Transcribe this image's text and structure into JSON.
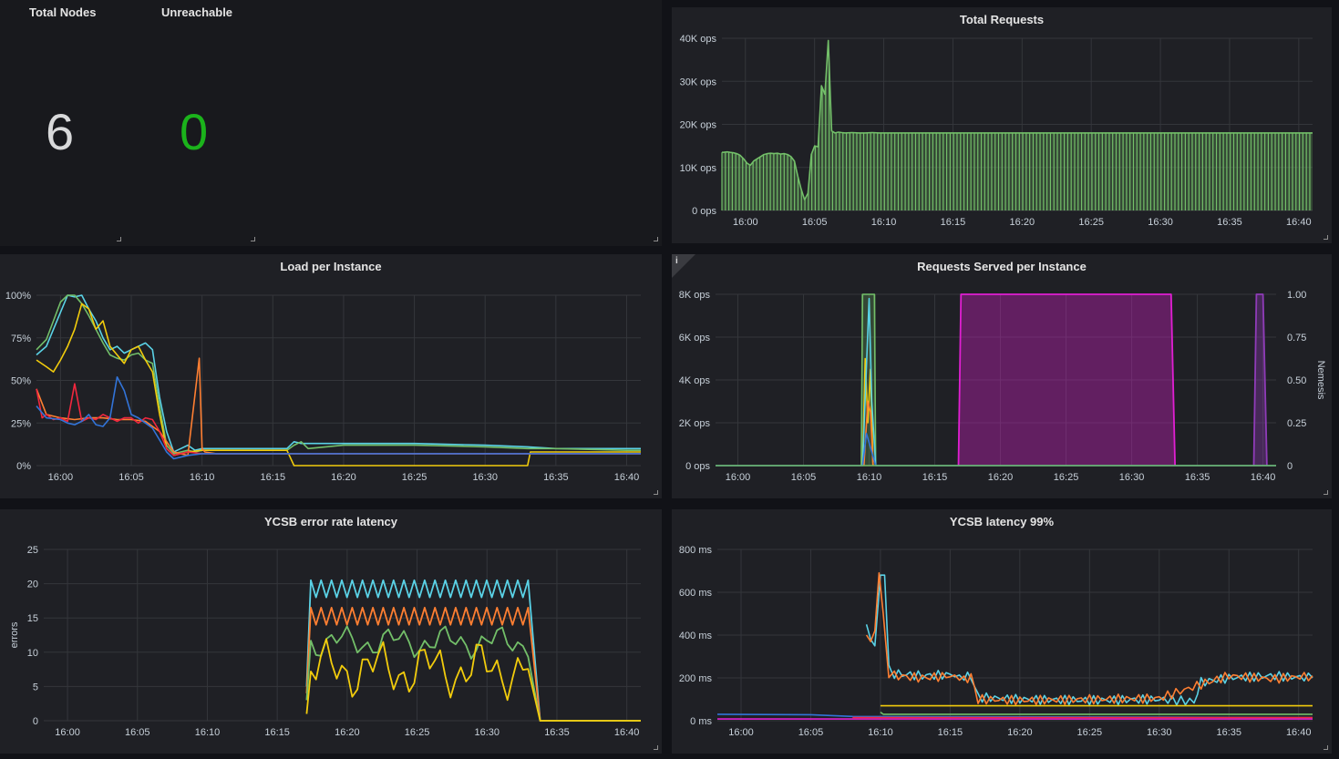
{
  "stats": {
    "total_nodes": {
      "title": "Total Nodes",
      "value": "6",
      "color": "#d8d9da"
    },
    "unreachable": {
      "title": "Unreachable",
      "value": "0",
      "color": "#1bb31b"
    }
  },
  "panels": {
    "total_requests": {
      "title": "Total Requests"
    },
    "load": {
      "title": "Load per Instance"
    },
    "requests_served": {
      "title": "Requests Served per Instance",
      "info_icon": "info-icon"
    },
    "ycsb_errors": {
      "title": "YCSB error rate latency"
    },
    "ycsb_latency": {
      "title": "YCSB latency 99%"
    }
  },
  "colors": {
    "grid": "#34363b",
    "green": "#73bf69",
    "cyan": "#5ad2e6",
    "yellow": "#f2cc0c",
    "orange": "#ff7f32",
    "red": "#f2273e",
    "blue": "#3274d9",
    "lightgreen": "#96d98d",
    "magenta": "#e01fd2",
    "purple": "#8f3bb8",
    "panel_bg": "#1f2025"
  },
  "chart_data": [
    {
      "id": "total_requests",
      "type": "bar",
      "title": "Total Requests",
      "x_ticks": [
        "16:00",
        "16:05",
        "16:10",
        "16:15",
        "16:20",
        "16:25",
        "16:30",
        "16:35",
        "16:40"
      ],
      "y_ticks": [
        "0 ops",
        "10K ops",
        "20K ops",
        "30K ops",
        "40K ops"
      ],
      "ylim": [
        0,
        40000
      ],
      "x_range": [
        "15:58",
        "16:41"
      ],
      "grid": true,
      "series": [
        {
          "color": "#73bf69",
          "x": [
            15.8,
            16,
            16.6,
            17,
            17.5,
            18,
            18.5,
            19,
            19.5,
            20,
            20.5,
            21,
            21.5,
            22,
            22.5,
            23,
            23.5,
            24,
            24.5,
            25,
            25.5,
            26,
            26.5,
            27,
            27.5,
            28,
            28.5,
            29,
            29.5,
            30,
            30.5,
            31,
            31.5,
            32,
            32.5,
            33,
            33.5,
            34,
            35,
            36,
            37,
            38,
            39,
            40,
            41,
            42,
            43,
            44,
            45,
            46,
            47,
            48,
            49,
            50,
            51,
            52,
            53,
            54,
            55,
            56,
            57,
            58,
            59,
            60,
            61,
            62,
            63,
            64,
            65,
            66,
            67,
            68,
            69,
            70,
            71,
            72,
            73,
            74,
            75,
            76,
            77,
            78,
            79,
            80,
            81,
            82,
            83,
            84,
            85,
            86,
            87,
            88,
            89,
            90,
            91,
            92,
            93,
            94,
            95,
            96,
            97,
            98,
            99,
            100,
            101,
            102,
            103
          ],
          "y": [
            13500,
            13500,
            13600,
            13500,
            13400,
            13200,
            12800,
            12000,
            11000,
            10500,
            11500,
            12000,
            12500,
            13000,
            13200,
            13300,
            13200,
            13300,
            13100,
            13200,
            13000,
            12500,
            11500,
            8000,
            5000,
            2500,
            4000,
            13000,
            15000,
            14800,
            29000,
            27000,
            39500,
            18500,
            18000,
            18200,
            18100,
            18000,
            18100,
            18000,
            18000,
            18100,
            18000,
            18000,
            18000,
            18000,
            18000,
            18000,
            18000,
            18000,
            18000,
            18000,
            18000,
            18000,
            18000,
            18000,
            18000,
            18000,
            18000,
            18000,
            18000,
            18000,
            18000,
            18000,
            18000,
            18000,
            18000,
            18000,
            18000,
            18000,
            18000,
            18000,
            18000,
            18000,
            18000,
            18000,
            18000,
            18000,
            18000,
            18000,
            18000,
            18000,
            18000,
            18000,
            18000,
            18000,
            18000,
            18000,
            18000,
            18000,
            18000,
            18000,
            18000,
            18000,
            18000,
            18000,
            18000,
            18000,
            18000,
            18000,
            18000,
            18000,
            18000,
            18000,
            18000,
            18000,
            18000
          ]
        }
      ]
    },
    {
      "id": "load",
      "type": "line",
      "title": "Load per Instance",
      "x_ticks": [
        "16:00",
        "16:05",
        "16:10",
        "16:15",
        "16:20",
        "16:25",
        "16:30",
        "16:35",
        "16:40"
      ],
      "y_ticks": [
        "0%",
        "25%",
        "50%",
        "75%",
        "100%"
      ],
      "ylim": [
        0,
        100
      ],
      "grid": true,
      "series": [
        {
          "color": "#5ad2e6",
          "x": [
            -1.7,
            -1,
            0,
            0.5,
            1,
            1.5,
            2,
            2.5,
            3,
            3.5,
            4,
            4.5,
            5,
            5.5,
            6,
            6.5,
            7,
            7.5,
            8,
            8.5,
            9,
            9.5,
            10,
            12,
            15,
            16,
            16.5,
            17,
            20,
            25,
            30,
            33,
            35,
            40,
            41
          ],
          "y": [
            65,
            70,
            90,
            100,
            99,
            100,
            92,
            85,
            75,
            68,
            70,
            66,
            68,
            70,
            72,
            68,
            40,
            20,
            8,
            10,
            12,
            9,
            10,
            10,
            10,
            10,
            14,
            13,
            13,
            13,
            12,
            11,
            10,
            10,
            10
          ]
        },
        {
          "color": "#73bf69",
          "x": [
            -1.7,
            -1,
            0,
            0.5,
            1,
            1.5,
            2,
            2.5,
            3,
            3.5,
            4,
            4.5,
            5,
            5.5,
            6,
            6.5,
            7,
            7.5,
            8,
            8.5,
            9,
            9.5,
            10,
            12,
            15,
            16,
            16.5,
            17,
            17.5,
            20,
            25,
            30,
            33,
            35,
            40,
            41
          ],
          "y": [
            68,
            74,
            96,
            100,
            100,
            95,
            88,
            80,
            72,
            65,
            63,
            62,
            65,
            66,
            62,
            60,
            35,
            12,
            7,
            8,
            9,
            8,
            9,
            9,
            9,
            9,
            12,
            14,
            10,
            12,
            12,
            11,
            10,
            10,
            9,
            9
          ]
        },
        {
          "color": "#f2cc0c",
          "x": [
            -1.7,
            -1,
            -0.5,
            0,
            0.5,
            1,
            1.5,
            2,
            2.5,
            3,
            3.5,
            4,
            4.5,
            5,
            5.5,
            6,
            6.5,
            7,
            7.5,
            8,
            9,
            10,
            12,
            15,
            16,
            16.5,
            20,
            25,
            30,
            33,
            33.2,
            35,
            40,
            41
          ],
          "y": [
            62,
            58,
            55,
            62,
            70,
            80,
            95,
            92,
            80,
            85,
            70,
            65,
            60,
            68,
            70,
            62,
            55,
            30,
            10,
            6,
            8,
            9,
            9,
            9,
            9,
            0,
            0,
            0,
            0,
            0,
            8,
            8,
            8,
            8
          ]
        },
        {
          "color": "#ff7f32",
          "x": [
            -1.7,
            -1,
            0,
            1,
            2,
            3,
            4,
            5,
            6,
            7,
            8,
            9,
            9.8,
            10,
            10.2,
            11,
            15,
            20,
            25,
            30,
            35,
            41
          ],
          "y": [
            45,
            30,
            28,
            27,
            28,
            28,
            27,
            27,
            26,
            20,
            8,
            6,
            63,
            10,
            8,
            7,
            7,
            7,
            7,
            7,
            7,
            7
          ]
        },
        {
          "color": "#f2273e",
          "x": [
            -1.7,
            -1.3,
            -1,
            -0.5,
            0,
            0.5,
            1,
            1.5,
            2,
            2.5,
            3,
            3.5,
            4,
            4.5,
            5,
            5.5,
            6,
            6.5,
            7,
            7.5,
            8,
            9,
            10,
            12,
            20,
            25,
            30,
            33,
            35,
            40,
            41
          ],
          "y": [
            45,
            28,
            30,
            27,
            28,
            26,
            48,
            26,
            28,
            27,
            30,
            28,
            26,
            28,
            28,
            25,
            28,
            27,
            20,
            10,
            6,
            8,
            7,
            7,
            7,
            7,
            7,
            7,
            7,
            7,
            7
          ]
        },
        {
          "color": "#3274d9",
          "x": [
            -1.7,
            -1,
            0,
            0.5,
            1,
            1.5,
            2,
            2.5,
            3,
            3.5,
            4,
            4.5,
            5,
            5.5,
            6,
            6.5,
            7,
            7.5,
            8,
            9,
            10,
            15,
            20,
            25,
            30,
            35,
            41
          ],
          "y": [
            35,
            28,
            27,
            25,
            24,
            26,
            30,
            24,
            23,
            28,
            52,
            44,
            30,
            28,
            25,
            22,
            15,
            8,
            4,
            6,
            7,
            7,
            7,
            7,
            7,
            7,
            7
          ]
        }
      ]
    },
    {
      "id": "requests_served",
      "type": "line",
      "title": "Requests Served per Instance",
      "x_ticks": [
        "16:00",
        "16:05",
        "16:10",
        "16:15",
        "16:20",
        "16:25",
        "16:30",
        "16:35",
        "16:40"
      ],
      "y_ticks": [
        "0 ops",
        "2K ops",
        "4K ops",
        "6K ops",
        "8K ops"
      ],
      "y2_ticks": [
        "0",
        "0.25",
        "0.50",
        "0.75",
        "1.00"
      ],
      "y2_label": "Nemesis",
      "ylim": [
        0,
        8000
      ],
      "y2lim": [
        0,
        1
      ],
      "grid": true,
      "series": [
        {
          "color": "#73bf69",
          "x": [
            9.4,
            9.5,
            10.4,
            10.5
          ],
          "y": [
            0,
            8000,
            8000,
            0
          ]
        },
        {
          "color": "#f2cc0c",
          "x": [
            9.5,
            9.7,
            9.9,
            10.1,
            10.3
          ],
          "y": [
            0,
            5000,
            2000,
            4500,
            0
          ]
        },
        {
          "color": "#ff7f32",
          "x": [
            9.6,
            9.9,
            10.1,
            10.3
          ],
          "y": [
            0,
            3000,
            2500,
            0
          ]
        },
        {
          "color": "#5ad2e6",
          "x": [
            9.5,
            10,
            10.2,
            10.5
          ],
          "y": [
            0,
            7800,
            3000,
            0
          ]
        },
        {
          "color": "#3274d9",
          "x": [
            -1.7,
            9.5,
            9.8,
            10.5,
            41
          ],
          "y": [
            0,
            0,
            1500,
            0,
            0
          ]
        },
        {
          "color": "#73bf69",
          "x": [
            -1.7,
            41
          ],
          "y": [
            0,
            0
          ]
        }
      ],
      "nemesis": [
        {
          "color": "#e01fd2",
          "x": [
            16.8,
            17,
            33,
            33.3
          ],
          "y": [
            0,
            1,
            1,
            0
          ]
        },
        {
          "color": "#8f3bb8",
          "x": [
            39.3,
            39.5,
            40,
            40.3
          ],
          "y": [
            0,
            1,
            1,
            0
          ]
        }
      ]
    },
    {
      "id": "ycsb_errors",
      "type": "line",
      "title": "YCSB error rate latency",
      "ylabel": "errors",
      "x_ticks": [
        "16:00",
        "16:05",
        "16:10",
        "16:15",
        "16:20",
        "16:25",
        "16:30",
        "16:35",
        "16:40"
      ],
      "y_ticks": [
        "0",
        "5",
        "10",
        "15",
        "20",
        "25"
      ],
      "ylim": [
        0,
        25
      ],
      "grid": true,
      "series": [
        {
          "color": "#5ad2e6",
          "pattern": "zigzag",
          "start": 17.1,
          "end": 33.2,
          "high": 20.5,
          "low": 18,
          "ramp_from": 5
        },
        {
          "color": "#ff7f32",
          "pattern": "zigzag",
          "start": 17.1,
          "end": 33.2,
          "high": 16.5,
          "low": 14,
          "ramp_from": 4
        },
        {
          "color": "#73bf69",
          "pattern": "noisy",
          "start": 17.1,
          "end": 33.2,
          "high": 14,
          "low": 9,
          "ramp_from": 3
        },
        {
          "color": "#f2cc0c",
          "pattern": "noisy",
          "start": 17.1,
          "end": 33.2,
          "high": 12,
          "low": 3,
          "ramp_from": 1
        }
      ]
    },
    {
      "id": "ycsb_latency",
      "type": "line",
      "title": "YCSB latency 99%",
      "x_ticks": [
        "16:00",
        "16:05",
        "16:10",
        "16:15",
        "16:20",
        "16:25",
        "16:30",
        "16:35",
        "16:40"
      ],
      "y_ticks": [
        "0 ms",
        "200 ms",
        "400 ms",
        "600 ms",
        "800 ms"
      ],
      "ylim": [
        0,
        800
      ],
      "grid": true,
      "series": [
        {
          "color": "#5ad2e6",
          "x": [
            9,
            9.3,
            9.6,
            10,
            10.3,
            10.6,
            11,
            13,
            15,
            16,
            16.5,
            17,
            20,
            25,
            30,
            32.5,
            33,
            35,
            38,
            41
          ],
          "y": [
            450,
            380,
            350,
            680,
            680,
            240,
            220,
            210,
            215,
            200,
            210,
            110,
            100,
            95,
            100,
            90,
            180,
            200,
            210,
            200
          ]
        },
        {
          "color": "#ff7f32",
          "x": [
            9,
            9.3,
            9.6,
            9.9,
            10.2,
            10.6,
            11,
            13,
            15,
            16,
            16.5,
            17,
            20,
            25,
            30,
            33,
            35,
            38,
            41
          ],
          "y": [
            400,
            370,
            420,
            690,
            500,
            220,
            210,
            200,
            210,
            195,
            205,
            100,
            95,
            100,
            105,
            170,
            210,
            195,
            210
          ]
        },
        {
          "color": "#f2cc0c",
          "x": [
            10,
            41
          ],
          "y": [
            70,
            70
          ]
        },
        {
          "color": "#73bf69",
          "x": [
            10,
            10.2,
            41
          ],
          "y": [
            40,
            30,
            30
          ]
        },
        {
          "color": "#3274d9",
          "x": [
            -1.7,
            5,
            8,
            41
          ],
          "y": [
            30,
            28,
            20,
            15
          ]
        },
        {
          "color": "#e01fd2",
          "x": [
            -1.7,
            41
          ],
          "y": [
            8,
            8
          ]
        },
        {
          "color": "#f2273e",
          "x": [
            8,
            41
          ],
          "y": [
            15,
            15
          ]
        }
      ]
    }
  ]
}
